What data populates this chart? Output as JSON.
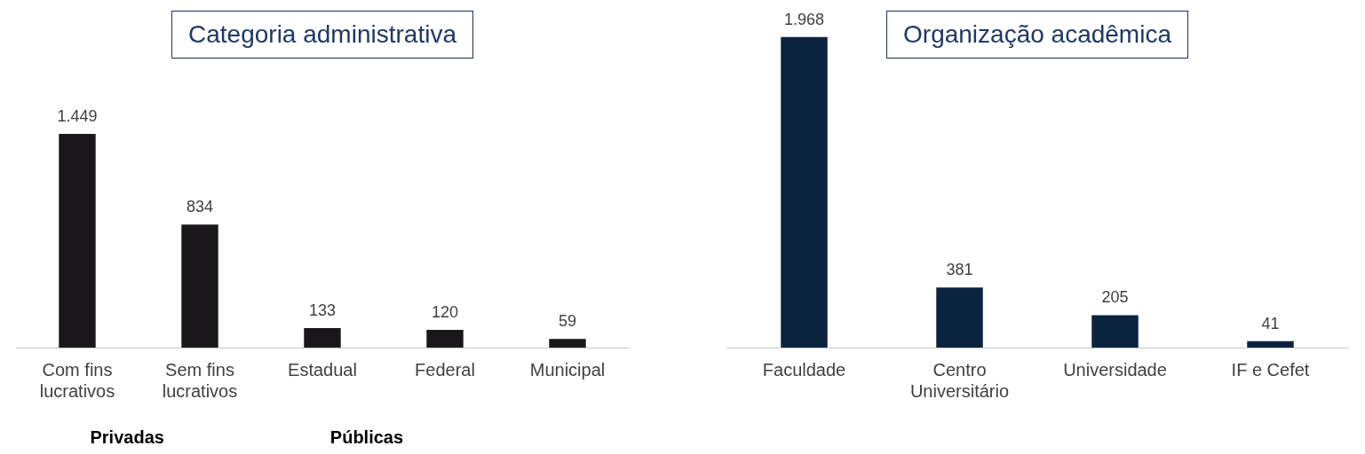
{
  "chart_data": [
    {
      "type": "bar",
      "title": "Categoria administrativa",
      "categories": [
        "Com fins lucrativos",
        "Sem fins lucrativos",
        "Estadual",
        "Federal",
        "Municipal"
      ],
      "values": [
        1449,
        834,
        133,
        120,
        59
      ],
      "value_labels": [
        "1.449",
        "834",
        "133",
        "120",
        "59"
      ],
      "color": "#1a171b",
      "annotations": [
        "Privadas",
        "Públicas"
      ]
    },
    {
      "type": "bar",
      "title": "Organização acadêmica",
      "categories": [
        "Faculdade",
        "Centro Universitário",
        "Universidade",
        "IF e Cefet"
      ],
      "values": [
        1968,
        381,
        205,
        41
      ],
      "value_labels": [
        "1.968",
        "381",
        "205",
        "41"
      ],
      "color": "#0c2340"
    }
  ]
}
